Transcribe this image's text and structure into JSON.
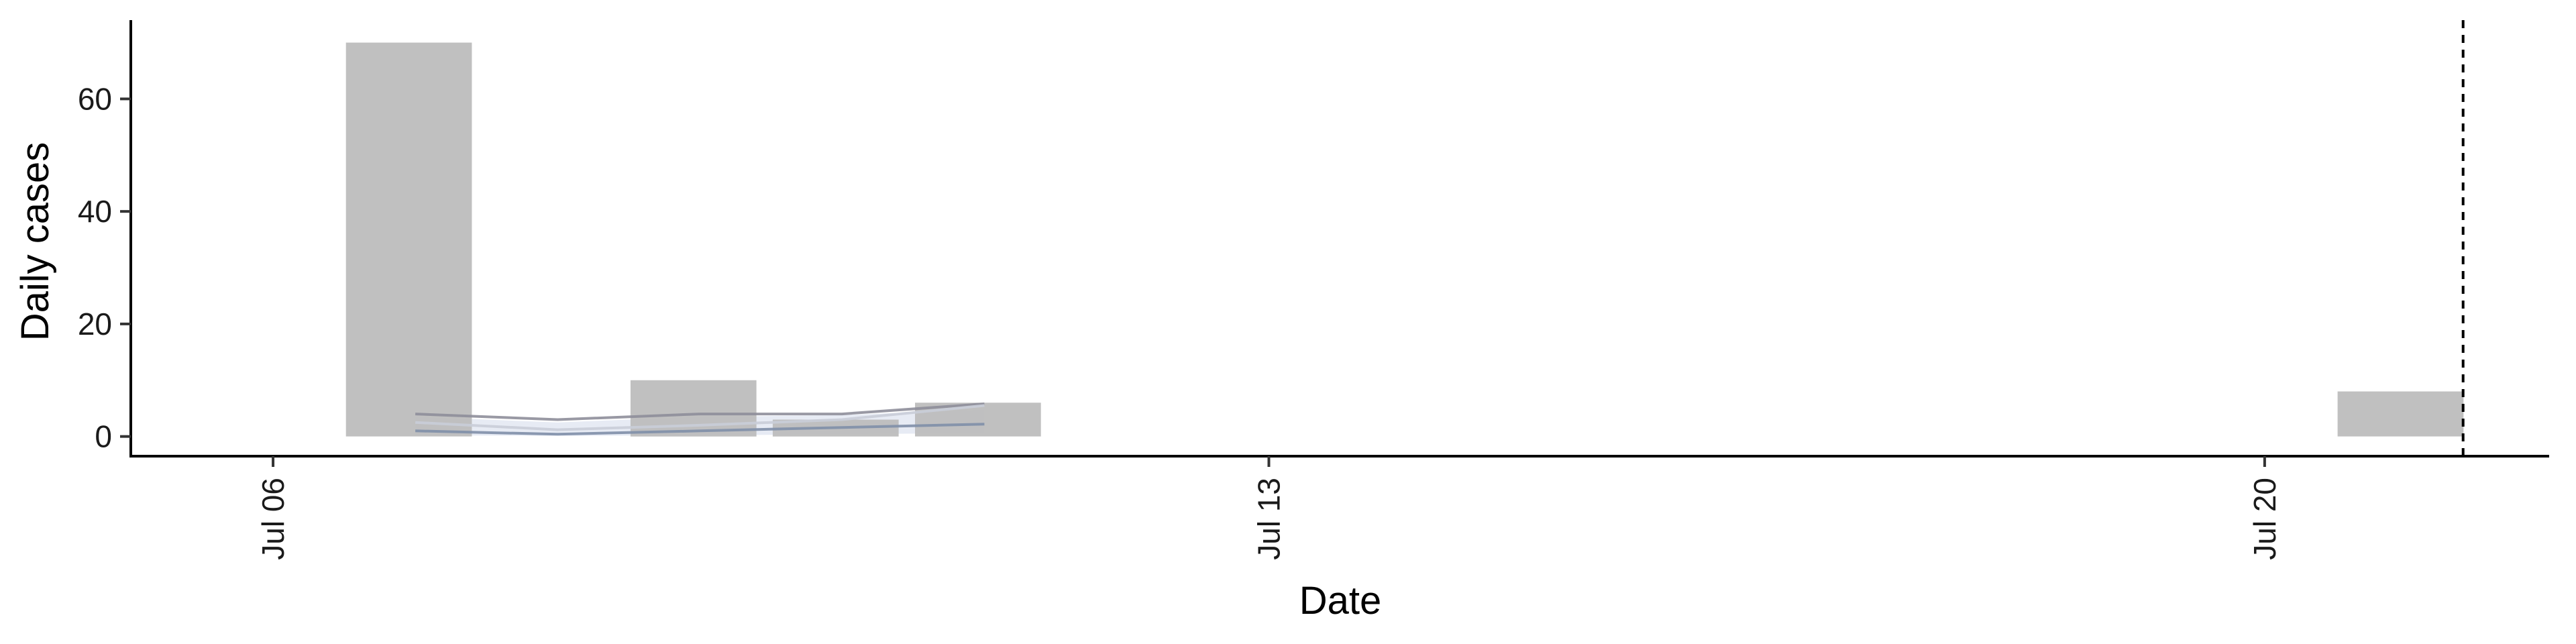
{
  "chart_data": {
    "type": "bar",
    "title": "",
    "xlabel": "Date",
    "ylabel": "Daily cases",
    "x_ticks": [
      "2020-07-06",
      "2020-07-13",
      "2020-07-20"
    ],
    "x_tick_labels": [
      "Jul 06",
      "Jul 13",
      "Jul 20"
    ],
    "y_ticks": [
      0,
      20,
      40,
      60
    ],
    "ylim": [
      -3.5,
      74
    ],
    "xlim": [
      "2020-07-05",
      "2020-07-22"
    ],
    "grid": false,
    "legend": "none",
    "bars": {
      "name": "Daily cases",
      "x": [
        "2020-07-07",
        "2020-07-09",
        "2020-07-10",
        "2020-07-11",
        "2020-07-21"
      ],
      "values": [
        70,
        10,
        3,
        6,
        8
      ],
      "color": "#bdbdbd"
    },
    "series": [
      {
        "x": [
          "2020-07-07",
          "2020-07-08",
          "2020-07-09",
          "2020-07-10",
          "2020-07-11"
        ],
        "values": [
          4.0,
          3.0,
          4.0,
          4.0,
          5.8
        ],
        "color": "#8e8e9a"
      },
      {
        "x": [
          "2020-07-07",
          "2020-07-08",
          "2020-07-09",
          "2020-07-10",
          "2020-07-11"
        ],
        "values": [
          2.5,
          1.2,
          2.0,
          3.0,
          5.5
        ],
        "color": "#c9cdd8"
      },
      {
        "x": [
          "2020-07-07",
          "2020-07-08",
          "2020-07-09",
          "2020-07-10",
          "2020-07-11"
        ],
        "values": [
          1.0,
          0.4,
          1.0,
          1.6,
          2.2
        ],
        "color": "#7f8fa8"
      }
    ],
    "ribbons": [
      {
        "x": [
          "2020-07-07",
          "2020-07-08",
          "2020-07-09",
          "2020-07-10",
          "2020-07-11"
        ],
        "lower": [
          0.2,
          0.1,
          0.2,
          0.4,
          0.6
        ],
        "upper": [
          3.5,
          2.5,
          3.5,
          3.8,
          4.8
        ],
        "color": "#dde3f0"
      }
    ],
    "vline": {
      "x": "2020-07-21",
      "style": "dashed"
    }
  }
}
